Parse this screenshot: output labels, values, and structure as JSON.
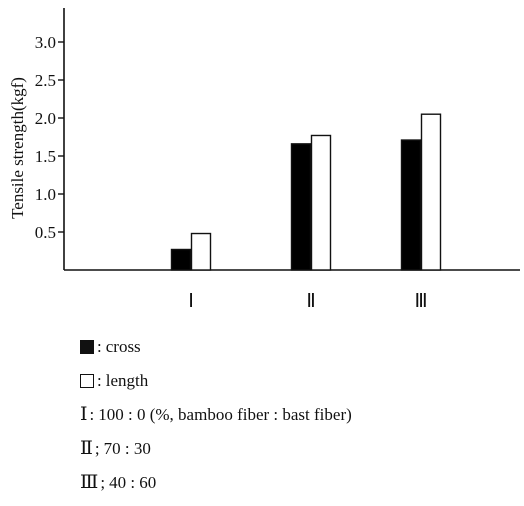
{
  "chart_data": {
    "type": "bar",
    "title": "",
    "xlabel": "",
    "ylabel": "Tensile strength(kgf)",
    "ylim": [
      0,
      3.4
    ],
    "yticks": [
      "0.5",
      "1.0",
      "1.5",
      "2.0",
      "2.5",
      "3.0"
    ],
    "categories": [
      "Ⅰ",
      "Ⅱ",
      "Ⅲ"
    ],
    "series": [
      {
        "name": "cross",
        "values": [
          0.27,
          1.66,
          1.71
        ],
        "color": "#000000"
      },
      {
        "name": "length",
        "values": [
          0.48,
          1.77,
          2.05
        ],
        "color": "#ffffff"
      }
    ],
    "grid": false,
    "legend_position": "bottom-left"
  },
  "legend": {
    "items": [
      {
        "marker": "filled-square",
        "sep": ":",
        "text": "cross"
      },
      {
        "marker": "hollow-square",
        "sep": ":",
        "text": "length"
      },
      {
        "marker": "Ⅰ",
        "sep": ":",
        "text": "100 : 0 (%, bamboo fiber : bast fiber)"
      },
      {
        "marker": "Ⅱ",
        "sep": ";",
        "text": "70 : 30"
      },
      {
        "marker": "Ⅲ",
        "sep": ";",
        "text": "40 : 60"
      }
    ]
  }
}
